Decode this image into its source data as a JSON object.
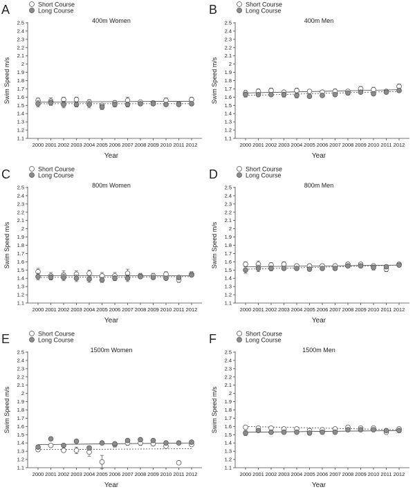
{
  "chart_data": [
    {
      "type": "scatter",
      "letter": "A",
      "title": "400m Women",
      "xlabel": "Year",
      "ylabel": "Swim Speed m/s",
      "ylim": [
        1.1,
        2.5
      ],
      "yticks": [
        "1.1",
        "1.2",
        "1.3",
        "1.4",
        "1.5",
        "1.6",
        "1.7",
        "1.8",
        "1.9",
        "2",
        "2.1",
        "2.2",
        "2.3",
        "2.4",
        "2.5"
      ],
      "categories": [
        "2000",
        "2001",
        "2002",
        "2003",
        "2004",
        "2005",
        "2006",
        "2007",
        "2008",
        "2009",
        "2010",
        "2011",
        "2012"
      ],
      "legend_placement": "top-left",
      "series": [
        {
          "name": "Short Course",
          "marker": "open",
          "trend": "solid",
          "values": [
            1.56,
            1.55,
            1.57,
            1.57,
            1.54,
            1.5,
            1.53,
            1.56,
            1.54,
            1.53,
            1.56,
            1.52,
            1.57
          ],
          "errors": [
            0.03,
            0.04,
            0.03,
            0.03,
            0.03,
            0.02,
            0.03,
            0.04,
            0.02,
            0.02,
            0.03,
            0.02,
            0.03
          ],
          "trend_line": [
            1.54,
            1.55
          ]
        },
        {
          "name": "Long Course",
          "marker": "filled",
          "trend": "dashed",
          "values": [
            1.52,
            1.53,
            1.51,
            1.51,
            1.51,
            1.48,
            1.51,
            1.51,
            1.52,
            1.52,
            1.51,
            1.51,
            1.52
          ],
          "errors": [
            0.04,
            0.03,
            0.04,
            0.03,
            0.04,
            0.03,
            0.03,
            0.03,
            0.02,
            0.02,
            0.02,
            0.02,
            0.02
          ],
          "trend_line": [
            1.52,
            1.52
          ]
        }
      ]
    },
    {
      "type": "scatter",
      "letter": "B",
      "title": "400m Men",
      "xlabel": "Year",
      "ylabel": "Swim Speed m/s",
      "ylim": [
        1.1,
        2.5
      ],
      "yticks": [
        "1.1",
        "1.2",
        "1.3",
        "1.4",
        "1.5",
        "1.6",
        "1.7",
        "1.8",
        "1.9",
        "2",
        "2.1",
        "2.2",
        "2.3",
        "2.4",
        "2.5"
      ],
      "categories": [
        "2000",
        "2001",
        "2002",
        "2003",
        "2004",
        "2005",
        "2006",
        "2007",
        "2008",
        "2009",
        "2010",
        "2011",
        "2012"
      ],
      "legend_placement": "top-left",
      "series": [
        {
          "name": "Short Course",
          "marker": "open",
          "trend": "solid",
          "values": [
            1.65,
            1.67,
            1.68,
            1.66,
            1.68,
            1.67,
            1.66,
            1.67,
            1.67,
            1.7,
            1.69,
            1.67,
            1.73
          ],
          "errors": [
            0.03,
            0.03,
            0.03,
            0.02,
            0.03,
            0.02,
            0.02,
            0.03,
            0.02,
            0.03,
            0.03,
            0.02,
            0.03
          ],
          "trend_line": [
            1.65,
            1.69
          ]
        },
        {
          "name": "Long Course",
          "marker": "filled",
          "trend": "dashed",
          "values": [
            1.63,
            1.63,
            1.63,
            1.63,
            1.62,
            1.61,
            1.62,
            1.63,
            1.65,
            1.66,
            1.64,
            1.66,
            1.68
          ],
          "errors": [
            0.03,
            0.02,
            0.02,
            0.03,
            0.03,
            0.02,
            0.02,
            0.02,
            0.02,
            0.02,
            0.02,
            0.02,
            0.02
          ],
          "trend_line": [
            1.62,
            1.67
          ]
        }
      ]
    },
    {
      "type": "scatter",
      "letter": "C",
      "title": "800m Women",
      "xlabel": "Year",
      "ylabel": "Swim Speed m/s",
      "ylim": [
        1.1,
        2.5
      ],
      "yticks": [
        "1.1",
        "1.2",
        "1.3",
        "1.4",
        "1.5",
        "1.6",
        "1.7",
        "1.8",
        "1.9",
        "2",
        "2.1",
        "2.2",
        "2.3",
        "2.4",
        "2.5"
      ],
      "categories": [
        "2000",
        "2001",
        "2002",
        "2003",
        "2004",
        "2005",
        "2006",
        "2007",
        "2008",
        "2009",
        "2010",
        "2011",
        "2012"
      ],
      "legend_placement": "top-left",
      "series": [
        {
          "name": "Short Course",
          "marker": "open",
          "trend": "solid",
          "values": [
            1.48,
            1.43,
            1.44,
            1.45,
            1.46,
            1.43,
            1.43,
            1.46,
            1.43,
            1.43,
            1.45,
            1.38,
            1.45
          ],
          "errors": [
            0.04,
            0.04,
            0.05,
            0.04,
            0.04,
            0.04,
            0.04,
            0.05,
            0.03,
            0.03,
            0.03,
            0.03,
            0.03
          ],
          "trend_line": [
            1.43,
            1.43
          ]
        },
        {
          "name": "Long Course",
          "marker": "filled",
          "trend": "dashed",
          "values": [
            1.42,
            1.41,
            1.41,
            1.4,
            1.39,
            1.38,
            1.4,
            1.4,
            1.42,
            1.41,
            1.4,
            1.41,
            1.44
          ],
          "errors": [
            0.04,
            0.03,
            0.04,
            0.04,
            0.04,
            0.03,
            0.03,
            0.04,
            0.02,
            0.02,
            0.02,
            0.02,
            0.02
          ],
          "trend_line": [
            1.41,
            1.42
          ]
        }
      ]
    },
    {
      "type": "scatter",
      "letter": "D",
      "title": "800m Men",
      "xlabel": "Year",
      "ylabel": "Swim Speed m/s",
      "ylim": [
        1.1,
        2.5
      ],
      "yticks": [
        "1.1",
        "1.2",
        "1.3",
        "1.4",
        "1.5",
        "1.6",
        "1.7",
        "1.8",
        "1.9",
        "2",
        "2.1",
        "2.2",
        "2.3",
        "2.4",
        "2.5"
      ],
      "categories": [
        "2000",
        "2001",
        "2002",
        "2003",
        "2004",
        "2005",
        "2006",
        "2007",
        "2008",
        "2009",
        "2010",
        "2011",
        "2012"
      ],
      "legend_placement": "top-left",
      "series": [
        {
          "name": "Short Course",
          "marker": "open",
          "trend": "solid",
          "values": [
            1.57,
            1.57,
            1.56,
            1.57,
            1.55,
            1.55,
            1.55,
            1.55,
            1.57,
            1.57,
            1.55,
            1.51,
            1.57
          ],
          "errors": [
            0.03,
            0.04,
            0.03,
            0.03,
            0.02,
            0.02,
            0.02,
            0.02,
            0.02,
            0.02,
            0.02,
            0.03,
            0.02
          ],
          "trend_line": [
            1.54,
            1.56
          ]
        },
        {
          "name": "Long Course",
          "marker": "filled",
          "trend": "dashed",
          "values": [
            1.5,
            1.52,
            1.52,
            1.52,
            1.52,
            1.51,
            1.52,
            1.52,
            1.55,
            1.55,
            1.53,
            1.54,
            1.56
          ],
          "errors": [
            0.04,
            0.04,
            0.03,
            0.02,
            0.02,
            0.02,
            0.02,
            0.02,
            0.02,
            0.02,
            0.03,
            0.02,
            0.02
          ],
          "trend_line": [
            1.51,
            1.56
          ]
        }
      ]
    },
    {
      "type": "scatter",
      "letter": "E",
      "title": "1500m Women",
      "xlabel": "Year",
      "ylabel": "Swim Speed m/s",
      "ylim": [
        1.1,
        2.5
      ],
      "yticks": [
        "1.1",
        "1.2",
        "1.3",
        "1.4",
        "1.5",
        "1.6",
        "1.7",
        "1.8",
        "1.9",
        "2",
        "2.1",
        "2.2",
        "2.3",
        "2.4",
        "2.5"
      ],
      "categories": [
        "2000",
        "2001",
        "2002",
        "2003",
        "2004",
        "2005",
        "2006",
        "2007",
        "2008",
        "2009",
        "2010",
        "2011",
        "2012"
      ],
      "legend_placement": "top-left",
      "series": [
        {
          "name": "Short Course",
          "marker": "open",
          "trend": "dashed",
          "values": [
            1.32,
            1.37,
            1.31,
            1.31,
            1.29,
            1.17,
            1.38,
            1.4,
            1.4,
            1.39,
            1.36,
            1.16,
            1.38
          ],
          "errors": [
            0.02,
            0.02,
            0.02,
            0.04,
            0.05,
            0.08,
            0.03,
            0.03,
            0.03,
            0.02,
            0.02,
            0.02,
            0.02
          ],
          "trend_line": [
            1.32,
            1.33
          ]
        },
        {
          "name": "Long Course",
          "marker": "filled",
          "trend": "solid",
          "values": [
            1.35,
            1.45,
            1.37,
            1.42,
            1.34,
            1.4,
            1.39,
            1.43,
            1.44,
            1.43,
            1.4,
            1.4,
            1.41
          ],
          "errors": [
            0.02,
            0.02,
            0.02,
            0.02,
            0.02,
            0.02,
            0.02,
            0.02,
            0.02,
            0.02,
            0.02,
            0.02,
            0.02
          ],
          "trend_line": [
            1.38,
            1.4
          ]
        }
      ]
    },
    {
      "type": "scatter",
      "letter": "F",
      "title": "1500m Men",
      "xlabel": "Year",
      "ylabel": "Swim Speed m/s",
      "ylim": [
        1.1,
        2.5
      ],
      "yticks": [
        "1.1",
        "1.2",
        "1.3",
        "1.4",
        "1.5",
        "1.6",
        "1.7",
        "1.8",
        "1.9",
        "2",
        "2.1",
        "2.2",
        "2.3",
        "2.4",
        "2.5"
      ],
      "categories": [
        "2000",
        "2001",
        "2002",
        "2003",
        "2004",
        "2005",
        "2006",
        "2007",
        "2008",
        "2009",
        "2010",
        "2011",
        "2012"
      ],
      "legend_placement": "top-left",
      "series": [
        {
          "name": "Short Course",
          "marker": "open",
          "trend": "dashed",
          "values": [
            1.59,
            1.58,
            1.58,
            1.57,
            1.57,
            1.55,
            1.56,
            1.57,
            1.59,
            1.58,
            1.58,
            1.53,
            1.57
          ],
          "errors": [
            0.02,
            0.02,
            0.02,
            0.02,
            0.02,
            0.02,
            0.02,
            0.02,
            0.02,
            0.02,
            0.02,
            0.02,
            0.02
          ],
          "trend_line": [
            1.6,
            1.56
          ]
        },
        {
          "name": "Long Course",
          "marker": "filled",
          "trend": "solid",
          "values": [
            1.52,
            1.55,
            1.53,
            1.53,
            1.53,
            1.52,
            1.53,
            1.53,
            1.56,
            1.56,
            1.56,
            1.55,
            1.55
          ],
          "errors": [
            0.03,
            0.02,
            0.02,
            0.02,
            0.02,
            0.02,
            0.02,
            0.02,
            0.02,
            0.02,
            0.02,
            0.02,
            0.02
          ],
          "trend_line": [
            1.53,
            1.55
          ]
        }
      ]
    }
  ],
  "colors": {
    "open_marker_fill": "#ffffff",
    "filled_marker": "#8c8c8c",
    "stroke": "#555555",
    "text": "#222222"
  }
}
